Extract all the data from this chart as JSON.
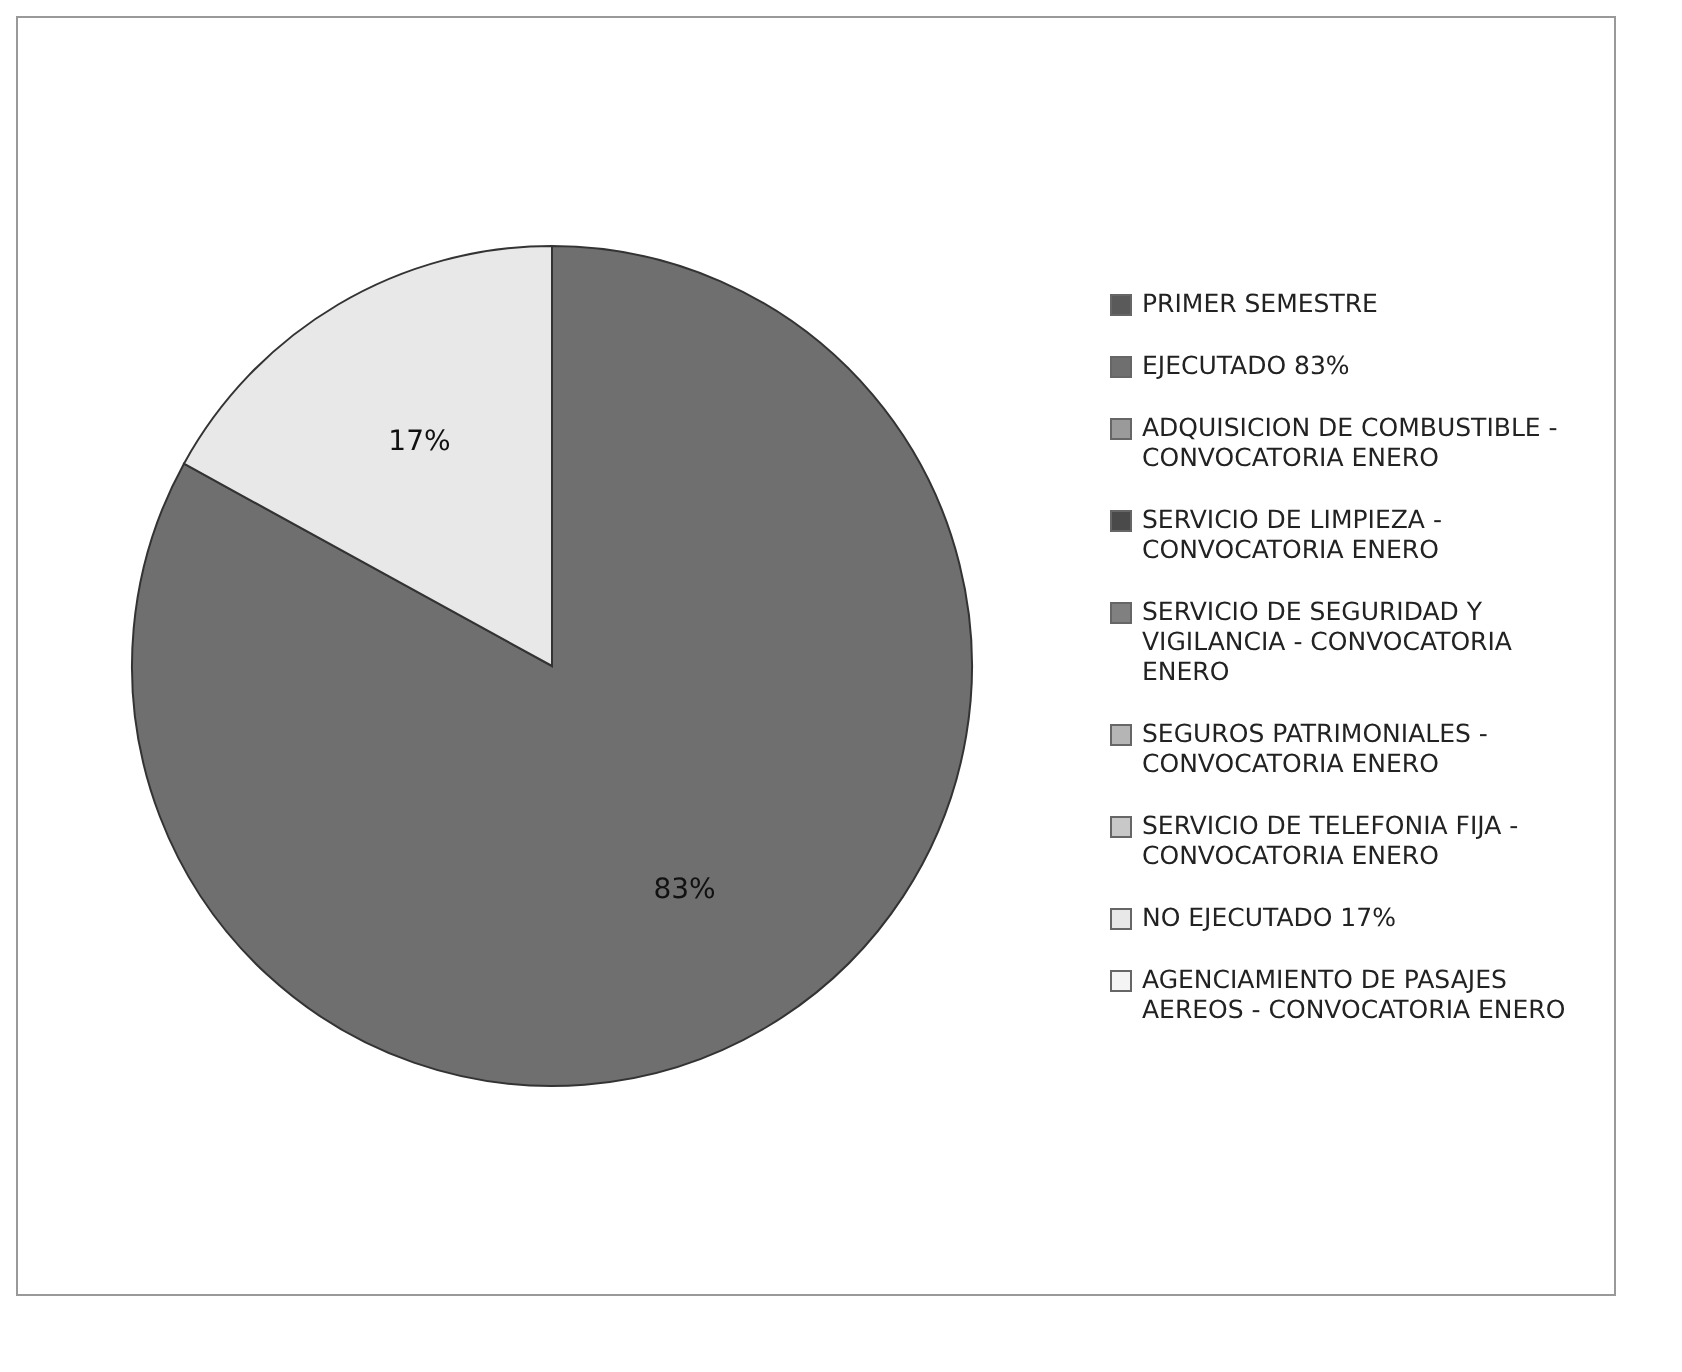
{
  "chart_data": {
    "type": "pie",
    "categories": [
      "PRIMER SEMESTRE",
      "EJECUTADO 83%",
      "ADQUISICION DE COMBUSTIBLE - CONVOCATORIA ENERO",
      "SERVICIO DE LIMPIEZA - CONVOCATORIA ENERO",
      "SERVICIO DE SEGURIDAD Y VIGILANCIA - CONVOCATORIA ENERO",
      "SEGUROS PATRIMONIALES - CONVOCATORIA ENERO",
      "SERVICIO DE TELEFONIA FIJA - CONVOCATORIA ENERO",
      "NO EJECUTADO 17%",
      "AGENCIAMIENTO DE PASAJES AEREOS - CONVOCATORIA ENERO"
    ],
    "values": [
      0,
      83,
      0,
      0,
      0,
      0,
      0,
      17,
      0
    ],
    "colors": [
      "#5a5a5a",
      "#6f6f6f",
      "#9a9a9a",
      "#4a4a4a",
      "#808080",
      "#b5b5b5",
      "#c8c8c8",
      "#e8e8e8",
      "#f4f4f4"
    ],
    "value_labels": [
      null,
      "83%",
      null,
      null,
      null,
      null,
      null,
      "17%",
      null
    ],
    "legend": "right"
  }
}
